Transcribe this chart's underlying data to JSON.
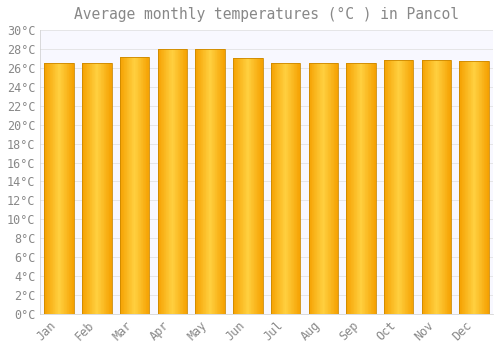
{
  "title": "Average monthly temperatures (°C ) in Pancol",
  "months": [
    "Jan",
    "Feb",
    "Mar",
    "Apr",
    "May",
    "Jun",
    "Jul",
    "Aug",
    "Sep",
    "Oct",
    "Nov",
    "Dec"
  ],
  "values": [
    26.5,
    26.5,
    27.2,
    28.0,
    28.0,
    27.0,
    26.5,
    26.5,
    26.5,
    26.8,
    26.8,
    26.7
  ],
  "bar_color_center": "#FFD040",
  "bar_color_edge": "#F5A000",
  "bar_edge_color": "#CC8800",
  "background_color": "#FFFFFF",
  "plot_bg_color": "#F8F8FF",
  "grid_color": "#DDDDDD",
  "text_color": "#888888",
  "ylim": [
    0,
    30
  ],
  "ytick_step": 2,
  "title_fontsize": 10.5,
  "tick_fontsize": 8.5
}
